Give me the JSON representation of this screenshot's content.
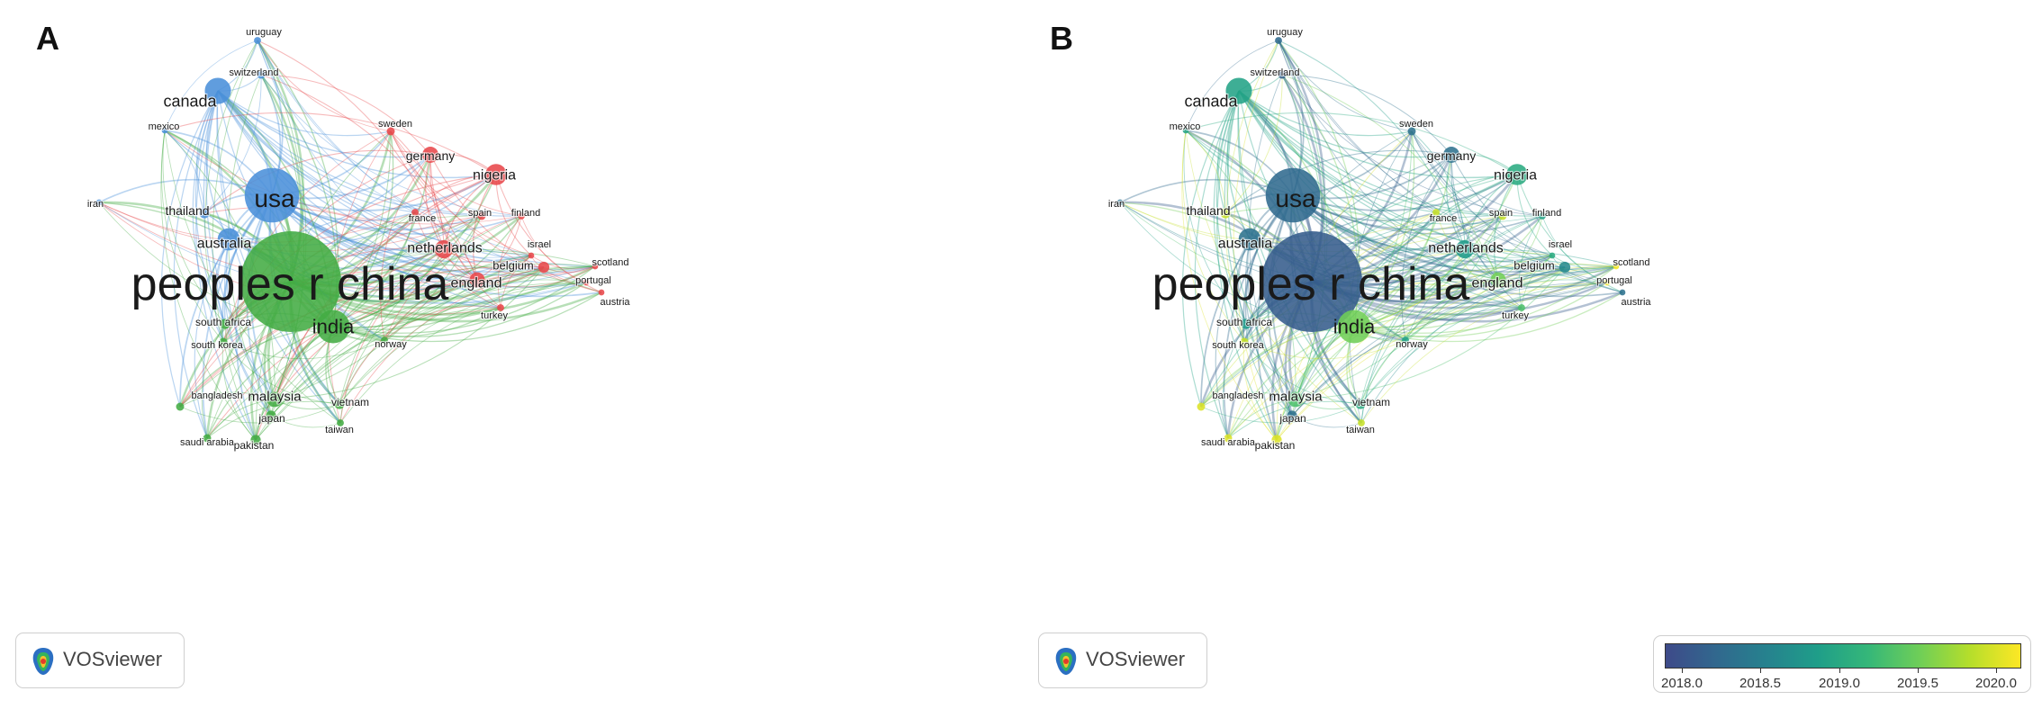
{
  "panels": [
    {
      "id": "a",
      "letter": "A",
      "mode": "cluster"
    },
    {
      "id": "b",
      "letter": "B",
      "mode": "overlay"
    }
  ],
  "brand": {
    "label": "VOSviewer"
  },
  "legend": {
    "ticks": [
      "2018.0",
      "2018.5",
      "2019.0",
      "2019.5",
      "2020.0"
    ],
    "range": [
      2017.85,
      2020.15
    ],
    "colors": [
      "#3e4a89",
      "#31688e",
      "#26828e",
      "#1f9e89",
      "#35b779",
      "#6ece58",
      "#b5de2b",
      "#fde725"
    ]
  },
  "clusters": {
    "blue": "#4a90d9",
    "red": "#e8474a",
    "green": "#43ac43"
  },
  "nodes": [
    {
      "label": "peoples r china",
      "cluster": "green",
      "weight": 10,
      "year": 2018.05
    },
    {
      "label": "usa",
      "cluster": "blue",
      "weight": 5.4,
      "year": 2018.2
    },
    {
      "label": "india",
      "cluster": "green",
      "weight": 3.3,
      "year": 2019.5
    },
    {
      "label": "canada",
      "cluster": "blue",
      "weight": 2.6,
      "year": 2018.9
    },
    {
      "label": "australia",
      "cluster": "blue",
      "weight": 2.2,
      "year": 2018.3
    },
    {
      "label": "nigeria",
      "cluster": "red",
      "weight": 2.1,
      "year": 2019.0
    },
    {
      "label": "germany",
      "cluster": "red",
      "weight": 1.6,
      "year": 2018.3
    },
    {
      "label": "netherlands",
      "cluster": "red",
      "weight": 1.8,
      "year": 2018.8
    },
    {
      "label": "england",
      "cluster": "red",
      "weight": 1.5,
      "year": 2019.5
    },
    {
      "label": "malaysia",
      "cluster": "green",
      "weight": 1.5,
      "year": 2019.3
    },
    {
      "label": "thailand",
      "cluster": "blue",
      "weight": 1.0,
      "year": 2019.9
    },
    {
      "label": "switzerland",
      "cluster": "blue",
      "weight": 0.8,
      "year": 2018.1
    },
    {
      "label": "uruguay",
      "cluster": "blue",
      "weight": 0.7,
      "year": 2018.2
    },
    {
      "label": "mexico",
      "cluster": "blue",
      "weight": 0.6,
      "year": 2018.9
    },
    {
      "label": "iran",
      "cluster": "blue",
      "weight": 0.6,
      "year": 2018.3
    },
    {
      "label": "sweden",
      "cluster": "red",
      "weight": 0.8,
      "year": 2018.3
    },
    {
      "label": "france",
      "cluster": "red",
      "weight": 0.7,
      "year": 2019.9
    },
    {
      "label": "spain",
      "cluster": "red",
      "weight": 0.8,
      "year": 2019.9
    },
    {
      "label": "finland",
      "cluster": "red",
      "weight": 0.7,
      "year": 2018.9
    },
    {
      "label": "israel",
      "cluster": "red",
      "weight": 0.6,
      "year": 2019.0
    },
    {
      "label": "belgium",
      "cluster": "red",
      "weight": 1.1,
      "year": 2018.6
    },
    {
      "label": "scotland",
      "cluster": "red",
      "weight": 0.6,
      "year": 2020.1
    },
    {
      "label": "portugal",
      "cluster": "red",
      "weight": 0.6,
      "year": 2020.1
    },
    {
      "label": "austria",
      "cluster": "red",
      "weight": 0.6,
      "year": 2018.3
    },
    {
      "label": "turkey",
      "cluster": "red",
      "weight": 0.7,
      "year": 2019.3
    },
    {
      "label": "south africa",
      "cluster": "green",
      "weight": 1.0,
      "year": 2018.8
    },
    {
      "label": "south korea",
      "cluster": "green",
      "weight": 0.8,
      "year": 2019.9
    },
    {
      "label": "norway",
      "cluster": "green",
      "weight": 0.7,
      "year": 2018.9
    },
    {
      "label": "bangladesh",
      "cluster": "green",
      "weight": 0.8,
      "year": 2020.0
    },
    {
      "label": "japan",
      "cluster": "green",
      "weight": 1.0,
      "year": 2018.3
    },
    {
      "label": "vietnam",
      "cluster": "green",
      "weight": 1.0,
      "year": 2019.0
    },
    {
      "label": "taiwan",
      "cluster": "green",
      "weight": 0.7,
      "year": 2019.9
    },
    {
      "label": "saudi arabia",
      "cluster": "green",
      "weight": 0.8,
      "year": 2020.0
    },
    {
      "label": "pakistan",
      "cluster": "green",
      "weight": 1.0,
      "year": 2020.0
    }
  ]
}
